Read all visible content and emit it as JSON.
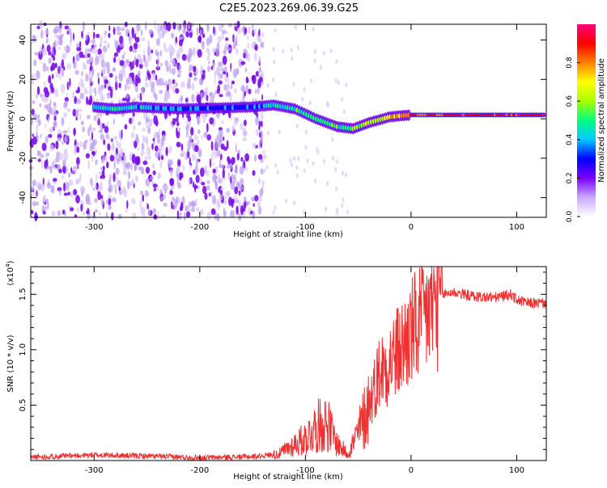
{
  "title": "C2E5.2023.269.06.39.G25",
  "chart_data": [
    {
      "type": "heatmap",
      "xlabel": "Height of straight line (km)",
      "ylabel": "Frequency (Hz)",
      "xlim": [
        -360,
        128
      ],
      "ylim": [
        -50,
        48
      ],
      "xticks": [
        -300,
        -200,
        -100,
        0,
        100
      ],
      "yticks": [
        -40,
        -20,
        0,
        20,
        40
      ],
      "grid": false,
      "colorbar": {
        "label": "Normalized spectral amplitude",
        "range": [
          0,
          1
        ],
        "ticks": [
          "0.0",
          "0.2",
          "0.4",
          "0.6",
          "0.8"
        ],
        "colormap": [
          "#ffffff",
          "#c8a8ff",
          "#7a00ff",
          "#0000ff",
          "#00c8ff",
          "#00ff80",
          "#aaff00",
          "#ffff00",
          "#ff8000",
          "#ff0000",
          "#ff0080"
        ]
      },
      "signal_track": [
        {
          "x": -300,
          "y": 6,
          "amplitude": 0.35
        },
        {
          "x": -280,
          "y": 5,
          "amplitude": 0.45
        },
        {
          "x": -260,
          "y": 6,
          "amplitude": 0.4
        },
        {
          "x": -220,
          "y": 5,
          "amplitude": 0.3
        },
        {
          "x": -150,
          "y": 6,
          "amplitude": 0.35
        },
        {
          "x": -130,
          "y": 7,
          "amplitude": 0.45
        },
        {
          "x": -110,
          "y": 5,
          "amplitude": 0.5
        },
        {
          "x": -90,
          "y": 0,
          "amplitude": 0.55
        },
        {
          "x": -70,
          "y": -4,
          "amplitude": 0.5
        },
        {
          "x": -55,
          "y": -5,
          "amplitude": 0.55
        },
        {
          "x": -40,
          "y": -2,
          "amplitude": 0.6
        },
        {
          "x": -20,
          "y": 1,
          "amplitude": 0.7
        },
        {
          "x": 0,
          "y": 2,
          "amplitude": 0.85
        },
        {
          "x": 50,
          "y": 2,
          "amplitude": 0.9
        },
        {
          "x": 100,
          "y": 2,
          "amplitude": 0.9
        },
        {
          "x": 128,
          "y": 2,
          "amplitude": 0.9
        }
      ],
      "noise_region_x": [
        -360,
        -140
      ]
    },
    {
      "type": "line",
      "xlabel": "Height of straight line (km)",
      "ylabel": "SNR (10 * v/v)",
      "yscale_label": "(x10",
      "yscale_exp": "4",
      "yscale_close": ")",
      "xlim": [
        -360,
        128
      ],
      "ylim": [
        0,
        17500
      ],
      "xticks": [
        -300,
        -200,
        -100,
        0,
        100
      ],
      "yticks": [
        5000,
        10000,
        15000
      ],
      "ytick_labels": [
        "0.5",
        "1.0",
        "1.5"
      ],
      "grid": false,
      "series": [
        {
          "color": "#ee3030",
          "x": [
            -360,
            -300,
            -250,
            -200,
            -150,
            -125,
            -110,
            -100,
            -90,
            -80,
            -75,
            -70,
            -60,
            -50,
            -40,
            -30,
            -20,
            -10,
            0,
            10,
            20,
            30,
            40,
            60,
            80,
            95,
            100,
            110,
            128
          ],
          "y": [
            300,
            500,
            400,
            250,
            350,
            600,
            1500,
            2000,
            3000,
            3500,
            2500,
            1500,
            600,
            2500,
            5000,
            8000,
            9000,
            10000,
            11500,
            12500,
            14000,
            15000,
            15200,
            14800,
            14700,
            15000,
            14500,
            14200,
            14200
          ]
        }
      ]
    }
  ]
}
